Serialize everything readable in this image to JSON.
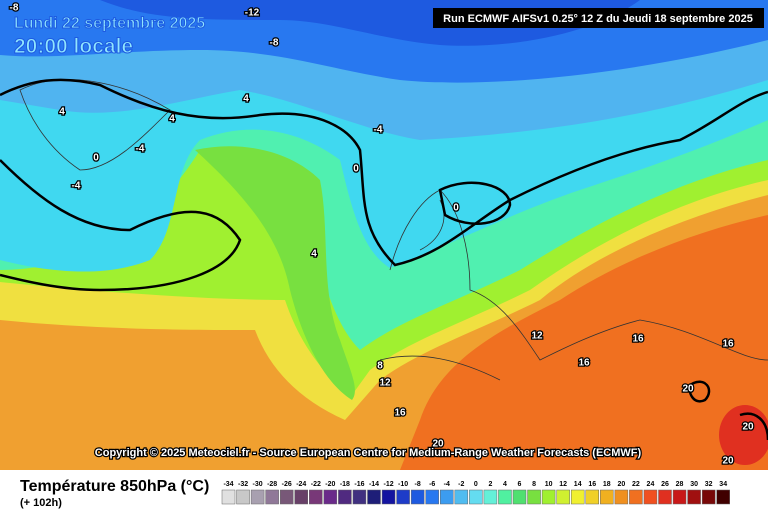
{
  "header": {
    "date": "Lundi 22 septembre 2025",
    "time": "20:00 locale",
    "run": "Run ECMWF AIFSv1 0.25° 12 Z du Jeudi 18 septembre 2025"
  },
  "map": {
    "copyright": "Copyright © 2025 Meteociel.fr - Source European Centre for Medium-Range Weather Forecasts (ECMWF)",
    "contour_labels": [
      -8,
      -12,
      -8,
      4,
      4,
      4,
      -4,
      -4,
      0,
      0,
      -4,
      0,
      4,
      8,
      12,
      12,
      16,
      16,
      16,
      16,
      20,
      20,
      20,
      20
    ]
  },
  "footer": {
    "title": "Température 850hPa (°C)",
    "lead": "(+ 102h)"
  },
  "legend": {
    "ticks": [
      -34,
      -32,
      -30,
      -28,
      -26,
      -24,
      -22,
      -20,
      -18,
      -16,
      -14,
      -12,
      -10,
      -8,
      -6,
      -4,
      -2,
      0,
      2,
      4,
      6,
      8,
      10,
      12,
      14,
      16,
      18,
      20,
      22,
      24,
      26,
      28,
      30,
      32,
      34
    ],
    "colors": [
      "#e0e0e0",
      "#c8c8c8",
      "#a8a0b0",
      "#907898",
      "#785878",
      "#684068",
      "#783878",
      "#6a2a8a",
      "#502a80",
      "#403080",
      "#1e1e78",
      "#1414a0",
      "#1e3cc8",
      "#1e5ae0",
      "#2878f0",
      "#3c9cf0",
      "#50bcf0",
      "#64dcf0",
      "#64f0d8",
      "#50f0a0",
      "#50e070",
      "#78e040",
      "#a0f030",
      "#d0f030",
      "#f0f030",
      "#f0d028",
      "#f0b020",
      "#f09020",
      "#f07020",
      "#f05020",
      "#e03020",
      "#c81818",
      "#a01010",
      "#780808",
      "#400000"
    ]
  }
}
